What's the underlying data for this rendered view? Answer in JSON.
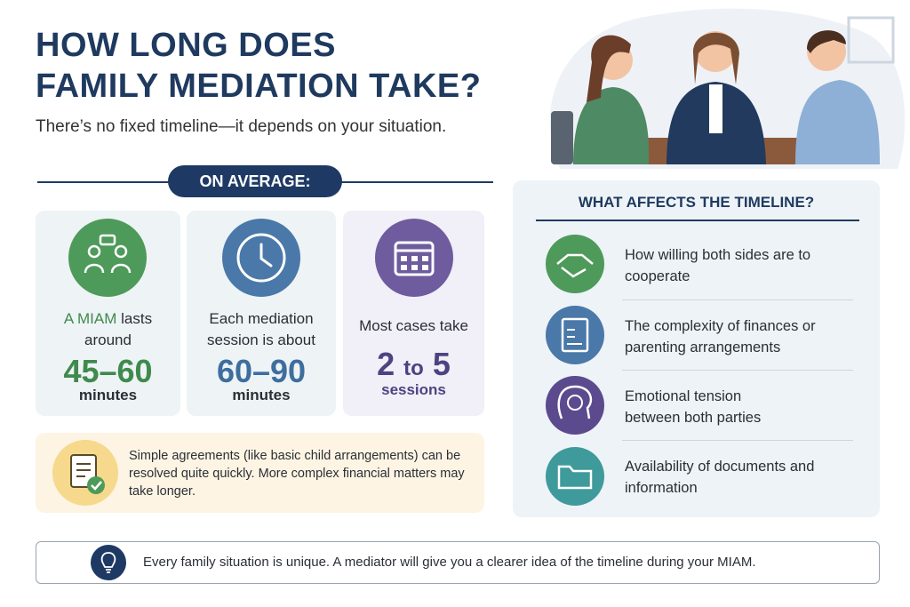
{
  "header": {
    "title_lines": [
      "HOW LONG DOES",
      "FAMILY MEDIATION TAKE?"
    ],
    "subtitle": "There’s no fixed timeline—it depends on your situation."
  },
  "average": {
    "label": "ON AVERAGE:",
    "cards": [
      {
        "lead_highlight": "A MIAM",
        "lead": "lasts around",
        "value": "45–60",
        "unit": "minutes"
      },
      {
        "lead": "Each mediation session is about",
        "value": "60–90",
        "unit": "minutes"
      },
      {
        "lead": "Most cases take",
        "value_parts": [
          "2",
          "to",
          "5"
        ],
        "unit": "sessions"
      }
    ]
  },
  "note": {
    "text": "Simple agreements (like basic child arrangements) can be resolved quite quickly. More complex financial matters may take longer."
  },
  "factors": {
    "title": "WHAT AFFECTS THE TIMELINE?",
    "items": [
      "How willing both sides are to cooperate",
      "The complexity of finances or parenting arrangements",
      "Emotional tension between both parties",
      "Availability of documents and information"
    ]
  },
  "footer": {
    "text": "Every family situation is unique. A mediator will give you a clearer idea of the timeline during your MIAM."
  }
}
